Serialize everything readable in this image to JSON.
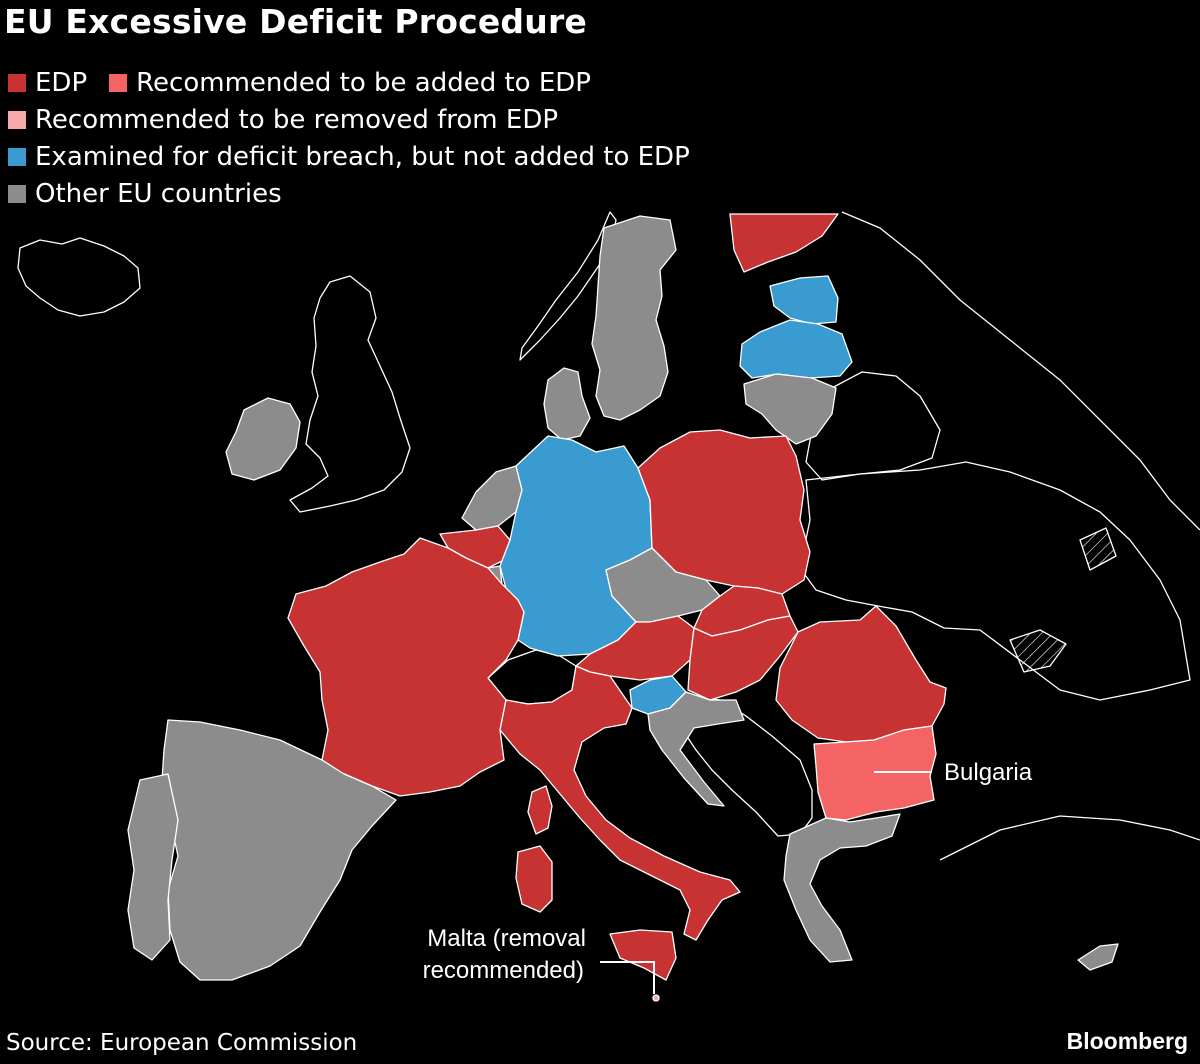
{
  "title": "EU Excessive Deficit Procedure",
  "legend": [
    {
      "label": "EDP",
      "color": "#c73232"
    },
    {
      "label": "Recommended to be added to EDP",
      "color": "#f05a5a"
    },
    {
      "label": "Recommended to be removed from EDP",
      "color": "#f7aaaa"
    },
    {
      "label": "Examined for deficit breach, but not added to EDP",
      "color": "#3a9bd0"
    },
    {
      "label": "Other EU countries",
      "color": "#8c8c8c"
    }
  ],
  "map": {
    "colors": {
      "edp": "#c73232",
      "added": "#f46464",
      "removed": "#f7aaaa",
      "examined": "#3a9bd0",
      "other": "#8c8c8c",
      "outline": "#ffffff"
    },
    "annotations": [
      {
        "text": "Bulgaria"
      },
      {
        "text_line1": "Malta (removal",
        "text_line2": "recommended)"
      }
    ]
  },
  "source": "Source: European Commission",
  "brand": "Bloomberg"
}
